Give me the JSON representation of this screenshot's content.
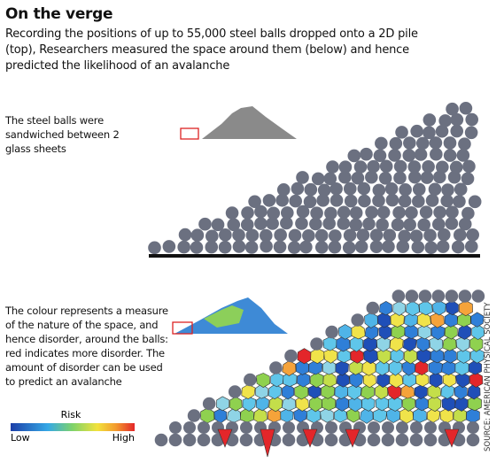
{
  "header": {
    "title": "On the verge",
    "subtitle": "Recording the positions of up to 55,000 steel balls dropped onto a 2D pile (top), Researchers measured the space around them (below) and hence predicted the likelihood of an avalanche"
  },
  "top_panel": {
    "caption": "The steel balls were sandwiched between 2 glass sheets"
  },
  "bottom_panel": {
    "caption": "The colour represents a measure of the nature of the space, and hence disorder, around the balls: red indicates more disorder. The amount of disorder can be used to predict an avalanche"
  },
  "legend": {
    "title": "Risk",
    "low": "Low",
    "high": "High"
  },
  "source": "SOURCE: AMERICAN PHYSICAL SOCIETY"
}
